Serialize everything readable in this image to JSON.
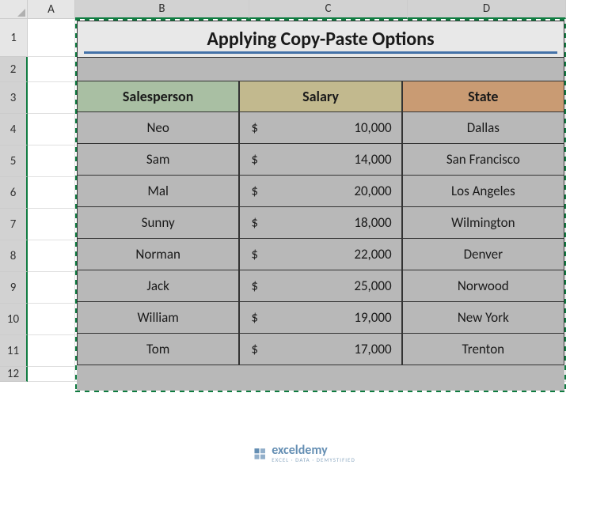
{
  "columns": [
    "A",
    "B",
    "C",
    "D"
  ],
  "rows": [
    "1",
    "2",
    "3",
    "4",
    "5",
    "6",
    "7",
    "8",
    "9",
    "10",
    "11",
    "12"
  ],
  "title": "Applying Copy-Paste Options",
  "headers": {
    "salesperson": "Salesperson",
    "salary": "Salary",
    "state": "State"
  },
  "data": [
    {
      "name": "Neo",
      "salary": "10,000",
      "state": "Dallas"
    },
    {
      "name": "Sam",
      "salary": "14,000",
      "state": "San Francisco"
    },
    {
      "name": "Mal",
      "salary": "20,000",
      "state": "Los Angeles"
    },
    {
      "name": "Sunny",
      "salary": "18,000",
      "state": "Wilmington"
    },
    {
      "name": "Norman",
      "salary": "22,000",
      "state": "Denver"
    },
    {
      "name": "Jack",
      "salary": "25,000",
      "state": "Norwood"
    },
    {
      "name": "William",
      "salary": "19,000",
      "state": "New York"
    },
    {
      "name": "Tom",
      "salary": "17,000",
      "state": "Trenton"
    }
  ],
  "currency_symbol": "$",
  "watermark": {
    "main": "exceldemy",
    "sub": "EXCEL · DATA · DEMYSTIFIED"
  },
  "colors": {
    "selection_border": "#107c41",
    "header_salesperson": "#a9bfa3",
    "header_salary": "#c2b98e",
    "header_state": "#c99b73",
    "title_underline": "#4472a8",
    "cell_bg": "#b8b8b8"
  }
}
